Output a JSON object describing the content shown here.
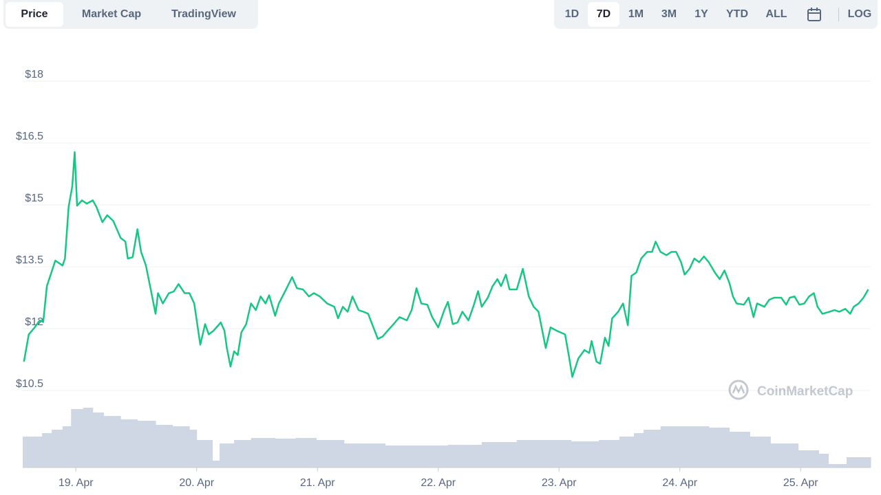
{
  "tabs": [
    "Price",
    "Market Cap",
    "TradingView"
  ],
  "ranges": [
    "1D",
    "7D",
    "1M",
    "3M",
    "1Y",
    "YTD",
    "ALL"
  ],
  "log_button": "LOG",
  "watermark": "CoinMarketCap",
  "chart_data": {
    "type": "line",
    "xlim": [
      0.56,
      7.58
    ],
    "xticks": [
      {
        "value": 1,
        "label": "19. Apr"
      },
      {
        "value": 2,
        "label": "20. Apr"
      },
      {
        "value": 3,
        "label": "21. Apr"
      },
      {
        "value": 4,
        "label": "22. Apr"
      },
      {
        "value": 5,
        "label": "23. Apr"
      },
      {
        "value": 6,
        "label": "24. Apr"
      },
      {
        "value": 7,
        "label": "25. Apr"
      }
    ],
    "ylim": [
      10.5,
      18
    ],
    "yticks": [
      {
        "value": 10.5,
        "label": "$10.5"
      },
      {
        "value": 12,
        "label": "$12"
      },
      {
        "value": 13.5,
        "label": "$13.5"
      },
      {
        "value": 15,
        "label": "$15"
      },
      {
        "value": 16.5,
        "label": "$16.5"
      },
      {
        "value": 18,
        "label": "$18"
      }
    ],
    "grid": true,
    "series": [
      {
        "color": "#16c784",
        "x": [
          0.57,
          0.61,
          0.66,
          0.7,
          0.73,
          0.76,
          0.83,
          0.89,
          0.91,
          0.94,
          0.97,
          0.99,
          1.01,
          1.05,
          1.09,
          1.14,
          1.17,
          1.22,
          1.26,
          1.31,
          1.37,
          1.41,
          1.43,
          1.47,
          1.51,
          1.54,
          1.58,
          1.62,
          1.66,
          1.68,
          1.72,
          1.77,
          1.81,
          1.85,
          1.9,
          1.94,
          1.98,
          2.03,
          2.07,
          2.1,
          2.14,
          2.2,
          2.23,
          2.25,
          2.28,
          2.31,
          2.34,
          2.37,
          2.41,
          2.45,
          2.49,
          2.53,
          2.57,
          2.6,
          2.65,
          2.68,
          2.74,
          2.79,
          2.83,
          2.88,
          2.93,
          2.97,
          3.02,
          3.08,
          3.14,
          3.17,
          3.21,
          3.25,
          3.29,
          3.34,
          3.38,
          3.42,
          3.5,
          3.54,
          3.59,
          3.63,
          3.68,
          3.74,
          3.78,
          3.82,
          3.86,
          3.91,
          3.95,
          4.0,
          4.05,
          4.08,
          4.12,
          4.16,
          4.2,
          4.25,
          4.29,
          4.33,
          4.36,
          4.41,
          4.45,
          4.49,
          4.52,
          4.56,
          4.59,
          4.65,
          4.7,
          4.75,
          4.79,
          4.83,
          4.89,
          4.93,
          4.98,
          5.05,
          5.08,
          5.11,
          5.16,
          5.21,
          5.25,
          5.27,
          5.31,
          5.34,
          5.38,
          5.41,
          5.44,
          5.49,
          5.53,
          5.57,
          5.6,
          5.64,
          5.68,
          5.73,
          5.77,
          5.8,
          5.84,
          5.89,
          5.93,
          5.97,
          6.01,
          6.04,
          6.08,
          6.12,
          6.16,
          6.2,
          6.24,
          6.29,
          6.33,
          6.37,
          6.41,
          6.44,
          6.47,
          6.53,
          6.57,
          6.61,
          6.64,
          6.7,
          6.74,
          6.78,
          6.84,
          6.88,
          6.91,
          6.95,
          6.99,
          7.03,
          7.07,
          7.11,
          7.14,
          7.18,
          7.24,
          7.28,
          7.32,
          7.37,
          7.41,
          7.44,
          7.48,
          7.52,
          7.56
        ],
        "values": [
          11.2,
          11.86,
          12.03,
          12.2,
          12.16,
          13.03,
          13.65,
          13.53,
          13.7,
          14.95,
          15.45,
          16.28,
          14.98,
          15.11,
          15.03,
          15.11,
          14.95,
          14.58,
          14.75,
          14.61,
          14.2,
          14.11,
          13.7,
          13.73,
          14.41,
          13.86,
          13.53,
          12.95,
          12.36,
          12.86,
          12.61,
          12.86,
          12.9,
          13.08,
          12.86,
          12.86,
          12.61,
          11.61,
          12.11,
          11.86,
          11.95,
          12.15,
          11.95,
          11.53,
          11.08,
          11.45,
          11.36,
          11.91,
          12.11,
          12.61,
          12.45,
          12.78,
          12.61,
          12.81,
          12.31,
          12.61,
          12.95,
          13.25,
          12.98,
          12.95,
          12.78,
          12.86,
          12.78,
          12.61,
          12.53,
          12.25,
          12.53,
          12.41,
          12.78,
          12.45,
          12.41,
          12.36,
          11.75,
          11.81,
          11.98,
          12.11,
          12.28,
          12.2,
          12.45,
          12.98,
          12.61,
          12.58,
          12.28,
          12.03,
          12.45,
          12.65,
          12.11,
          12.15,
          12.41,
          12.2,
          12.53,
          12.91,
          12.53,
          12.75,
          13.03,
          13.2,
          13.03,
          13.31,
          12.95,
          12.95,
          13.45,
          12.78,
          12.53,
          12.41,
          11.53,
          12.03,
          11.95,
          11.86,
          11.36,
          10.83,
          11.28,
          11.48,
          11.41,
          11.7,
          11.2,
          11.15,
          11.78,
          11.58,
          12.25,
          12.41,
          12.61,
          12.08,
          13.28,
          13.36,
          13.7,
          13.86,
          13.86,
          14.11,
          13.86,
          13.78,
          13.86,
          13.86,
          13.61,
          13.31,
          13.45,
          13.7,
          13.61,
          13.75,
          13.61,
          13.36,
          13.2,
          13.41,
          13.11,
          12.78,
          12.61,
          12.58,
          12.75,
          12.28,
          12.61,
          12.53,
          12.7,
          12.75,
          12.75,
          12.58,
          12.75,
          12.78,
          12.58,
          12.61,
          12.78,
          12.86,
          12.53,
          12.36,
          12.41,
          12.45,
          12.41,
          12.48,
          12.36,
          12.53,
          12.61,
          12.75,
          12.95
        ]
      }
    ],
    "volume": {
      "color": "#cfd6e4",
      "ylim": [
        0,
        100
      ],
      "x": [
        0.56,
        0.72,
        0.8,
        0.89,
        0.96,
        1.06,
        1.14,
        1.23,
        1.37,
        1.51,
        1.66,
        1.8,
        1.94,
        2.0,
        2.13,
        2.19,
        2.31,
        2.45,
        2.65,
        2.82,
        2.99,
        3.22,
        3.56,
        4.08,
        4.36,
        4.65,
        5.1,
        5.33,
        5.5,
        5.62,
        5.7,
        5.84,
        6.07,
        6.24,
        6.41,
        6.58,
        6.75,
        6.98,
        7.15,
        7.23,
        7.38
      ],
      "values": [
        45,
        50,
        55,
        60,
        85,
        87,
        80,
        75,
        70,
        68,
        62,
        60,
        55,
        40,
        10,
        35,
        40,
        43,
        42,
        43,
        40,
        35,
        32,
        33,
        37,
        40,
        38,
        40,
        45,
        50,
        55,
        60,
        60,
        58,
        52,
        45,
        35,
        25,
        20,
        5,
        15
      ]
    }
  }
}
